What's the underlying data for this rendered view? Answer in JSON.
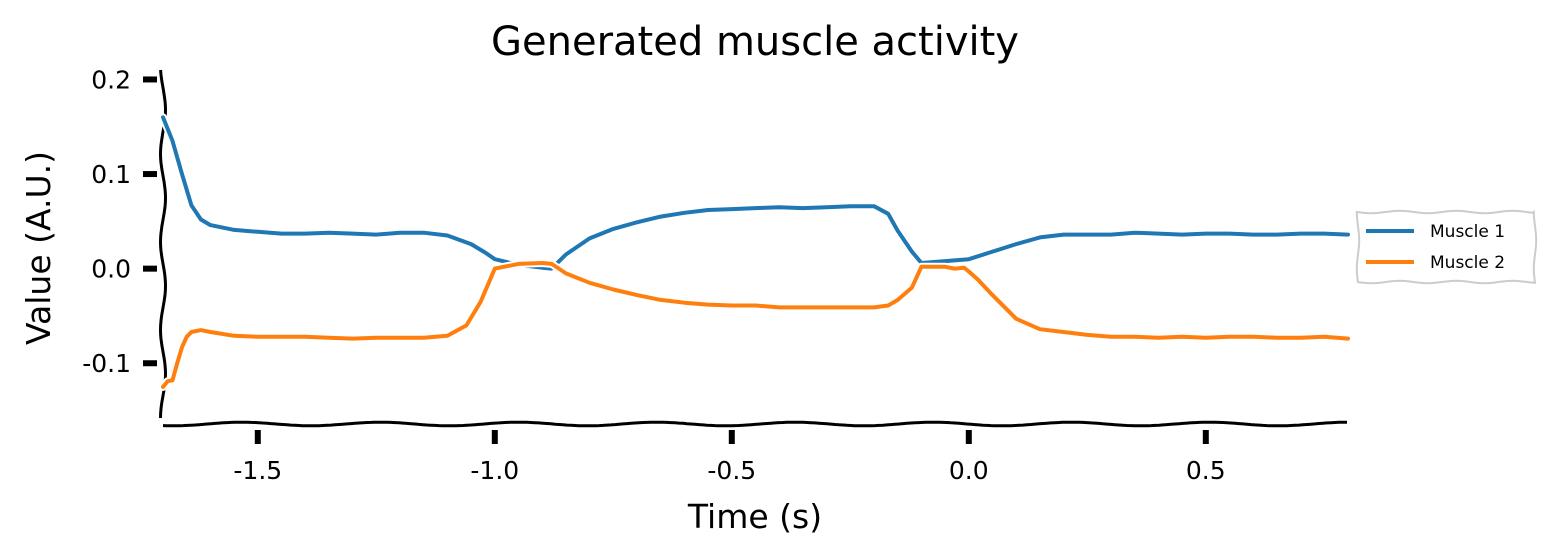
{
  "chart_data": {
    "type": "line",
    "title": "Generated muscle activity",
    "xlabel": "Time (s)",
    "ylabel": "Value (A.U.)",
    "xlim": [
      -1.7,
      0.8
    ],
    "ylim": [
      -0.16,
      0.21
    ],
    "xticks": [
      -1.5,
      -1.0,
      -0.5,
      0.0,
      0.5
    ],
    "xtick_labels": [
      "-1.5",
      "-1.0",
      "-0.5",
      "0.0",
      "0.5"
    ],
    "yticks": [
      0.2,
      0.1,
      0.0,
      -0.1
    ],
    "ytick_labels": [
      "0.2",
      "0.1",
      "0.0",
      "-0.1"
    ],
    "grid": false,
    "legend_position": "right",
    "series": [
      {
        "name": "Muscle 1",
        "color": "#1f77b4",
        "x": [
          -1.7,
          -1.68,
          -1.66,
          -1.64,
          -1.62,
          -1.6,
          -1.55,
          -1.5,
          -1.45,
          -1.4,
          -1.35,
          -1.3,
          -1.25,
          -1.2,
          -1.15,
          -1.1,
          -1.05,
          -1.02,
          -1.0,
          -0.95,
          -0.9,
          -0.88,
          -0.85,
          -0.8,
          -0.75,
          -0.7,
          -0.65,
          -0.6,
          -0.55,
          -0.5,
          -0.45,
          -0.4,
          -0.35,
          -0.3,
          -0.25,
          -0.2,
          -0.17,
          -0.15,
          -0.12,
          -0.1,
          -0.05,
          0.0,
          0.05,
          0.1,
          0.15,
          0.2,
          0.25,
          0.3,
          0.35,
          0.4,
          0.45,
          0.5,
          0.55,
          0.6,
          0.65,
          0.7,
          0.75,
          0.8
        ],
        "y": [
          0.16,
          0.135,
          0.1,
          0.067,
          0.052,
          0.046,
          0.041,
          0.039,
          0.037,
          0.037,
          0.038,
          0.037,
          0.036,
          0.038,
          0.038,
          0.035,
          0.026,
          0.017,
          0.01,
          0.004,
          0.001,
          0.0,
          0.015,
          0.032,
          0.042,
          0.049,
          0.055,
          0.059,
          0.062,
          0.063,
          0.064,
          0.065,
          0.064,
          0.065,
          0.066,
          0.066,
          0.058,
          0.04,
          0.018,
          0.006,
          0.008,
          0.01,
          0.018,
          0.026,
          0.033,
          0.036,
          0.036,
          0.036,
          0.038,
          0.037,
          0.036,
          0.037,
          0.037,
          0.036,
          0.036,
          0.037,
          0.037,
          0.036
        ]
      },
      {
        "name": "Muscle 2",
        "color": "#ff7f0e",
        "x": [
          -1.7,
          -1.69,
          -1.68,
          -1.67,
          -1.66,
          -1.65,
          -1.64,
          -1.62,
          -1.6,
          -1.55,
          -1.5,
          -1.45,
          -1.4,
          -1.35,
          -1.3,
          -1.25,
          -1.2,
          -1.15,
          -1.1,
          -1.06,
          -1.03,
          -1.0,
          -0.95,
          -0.9,
          -0.88,
          -0.85,
          -0.8,
          -0.75,
          -0.7,
          -0.65,
          -0.6,
          -0.55,
          -0.5,
          -0.45,
          -0.4,
          -0.35,
          -0.3,
          -0.25,
          -0.2,
          -0.17,
          -0.15,
          -0.12,
          -0.1,
          -0.05,
          -0.03,
          -0.01,
          0.0,
          0.02,
          0.05,
          0.1,
          0.15,
          0.2,
          0.25,
          0.3,
          0.35,
          0.4,
          0.45,
          0.5,
          0.55,
          0.6,
          0.65,
          0.7,
          0.75,
          0.8
        ],
        "y": [
          -0.125,
          -0.119,
          -0.118,
          -0.1,
          -0.083,
          -0.072,
          -0.067,
          -0.065,
          -0.067,
          -0.071,
          -0.072,
          -0.072,
          -0.072,
          -0.073,
          -0.074,
          -0.073,
          -0.073,
          -0.073,
          -0.071,
          -0.06,
          -0.035,
          0.0,
          0.005,
          0.006,
          0.005,
          -0.005,
          -0.015,
          -0.022,
          -0.028,
          -0.033,
          -0.036,
          -0.038,
          -0.039,
          -0.039,
          -0.041,
          -0.041,
          -0.041,
          -0.041,
          -0.041,
          -0.039,
          -0.033,
          -0.02,
          0.002,
          0.002,
          0.0,
          0.001,
          -0.003,
          -0.012,
          -0.028,
          -0.053,
          -0.064,
          -0.067,
          -0.07,
          -0.072,
          -0.072,
          -0.073,
          -0.072,
          -0.073,
          -0.072,
          -0.072,
          -0.073,
          -0.073,
          -0.072,
          -0.074
        ]
      }
    ]
  }
}
